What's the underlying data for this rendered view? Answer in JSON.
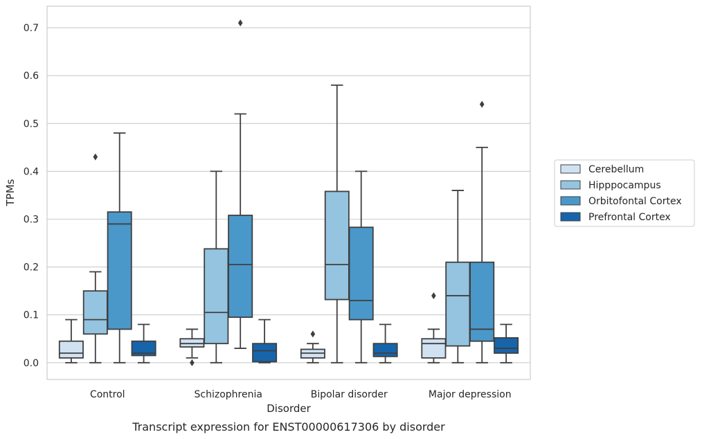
{
  "caption": "Transcript expression for ENST00000617306 by disorder",
  "chart_data": {
    "type": "box",
    "xlabel": "Disorder",
    "ylabel": "TPMs",
    "ylim": [
      -0.035,
      0.745
    ],
    "yticks": [
      0.0,
      0.1,
      0.2,
      0.3,
      0.4,
      0.5,
      0.6,
      0.7
    ],
    "ytick_labels": [
      "0.0",
      "0.1",
      "0.2",
      "0.3",
      "0.4",
      "0.5",
      "0.6",
      "0.7"
    ],
    "grid": "horizontal",
    "legend_position": "right",
    "categories": [
      "Control",
      "Schizophrenia",
      "Bipolar disorder",
      "Major depression"
    ],
    "series": [
      {
        "name": "Cerebellum",
        "color": "#d0e1f2",
        "boxes": [
          {
            "whislo": 0.0,
            "q1": 0.01,
            "med": 0.02,
            "q3": 0.045,
            "whishi": 0.09,
            "fliers": []
          },
          {
            "whislo": 0.01,
            "q1": 0.033,
            "med": 0.04,
            "q3": 0.05,
            "whishi": 0.07,
            "fliers": [
              0.0
            ]
          },
          {
            "whislo": 0.0,
            "q1": 0.01,
            "med": 0.02,
            "q3": 0.028,
            "whishi": 0.04,
            "fliers": [
              0.06
            ]
          },
          {
            "whislo": 0.0,
            "q1": 0.01,
            "med": 0.04,
            "q3": 0.05,
            "whishi": 0.07,
            "fliers": [
              0.14
            ]
          }
        ]
      },
      {
        "name": "Hipppocampus",
        "color": "#94c4df",
        "boxes": [
          {
            "whislo": 0.0,
            "q1": 0.06,
            "med": 0.09,
            "q3": 0.15,
            "whishi": 0.19,
            "fliers": [
              0.43
            ]
          },
          {
            "whislo": 0.0,
            "q1": 0.04,
            "med": 0.105,
            "q3": 0.238,
            "whishi": 0.4,
            "fliers": []
          },
          {
            "whislo": 0.0,
            "q1": 0.132,
            "med": 0.205,
            "q3": 0.358,
            "whishi": 0.58,
            "fliers": []
          },
          {
            "whislo": 0.0,
            "q1": 0.035,
            "med": 0.14,
            "q3": 0.21,
            "whishi": 0.36,
            "fliers": []
          }
        ]
      },
      {
        "name": "Orbitofontal Cortex",
        "color": "#4a98c9",
        "boxes": [
          {
            "whislo": 0.0,
            "q1": 0.07,
            "med": 0.29,
            "q3": 0.315,
            "whishi": 0.48,
            "fliers": []
          },
          {
            "whislo": 0.03,
            "q1": 0.095,
            "med": 0.205,
            "q3": 0.308,
            "whishi": 0.52,
            "fliers": [
              0.71
            ]
          },
          {
            "whislo": 0.0,
            "q1": 0.09,
            "med": 0.13,
            "q3": 0.283,
            "whishi": 0.4,
            "fliers": []
          },
          {
            "whislo": 0.0,
            "q1": 0.045,
            "med": 0.07,
            "q3": 0.21,
            "whishi": 0.45,
            "fliers": [
              0.54
            ]
          }
        ]
      },
      {
        "name": "Prefrontal Cortex",
        "color": "#1764ab",
        "boxes": [
          {
            "whislo": 0.0,
            "q1": 0.015,
            "med": 0.02,
            "q3": 0.045,
            "whishi": 0.08,
            "fliers": []
          },
          {
            "whislo": 0.0,
            "q1": 0.002,
            "med": 0.025,
            "q3": 0.04,
            "whishi": 0.09,
            "fliers": []
          },
          {
            "whislo": 0.0,
            "q1": 0.013,
            "med": 0.02,
            "q3": 0.04,
            "whishi": 0.08,
            "fliers": []
          },
          {
            "whislo": 0.0,
            "q1": 0.02,
            "med": 0.03,
            "q3": 0.052,
            "whishi": 0.08,
            "fliers": []
          }
        ]
      }
    ]
  }
}
